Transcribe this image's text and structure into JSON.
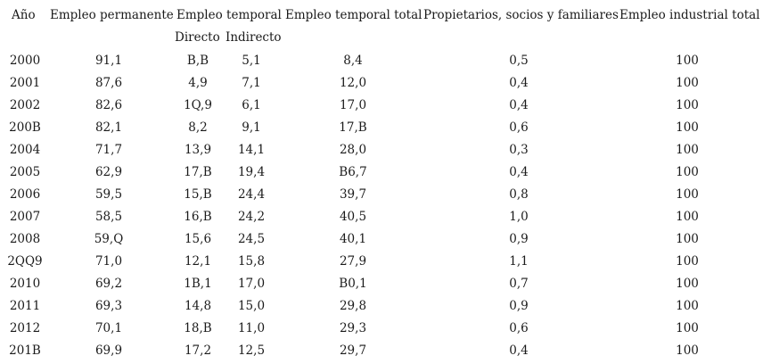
{
  "headers": {
    "year": "Año",
    "permanent": "Empleo permanente",
    "temporary": "Empleo temporal",
    "temporary_total": "Empleo temporal total",
    "owners": "Propietarios, socios y familiares",
    "industrial_total": "Empleo industrial total"
  },
  "subheaders": {
    "direct": "Directo",
    "indirect": "Indirecto"
  },
  "rows": [
    {
      "year": "2000",
      "perm": "91,1",
      "dir": "B,B",
      "ind": "5,1",
      "tot": "8,4",
      "prop": "0,5",
      "indtot": "100"
    },
    {
      "year": "2001",
      "perm": "87,6",
      "dir": "4,9",
      "ind": "7,1",
      "tot": "12,0",
      "prop": "0,4",
      "indtot": "100"
    },
    {
      "year": "2002",
      "perm": "82,6",
      "dir": "1Q,9",
      "ind": "6,1",
      "tot": "17,0",
      "prop": "0,4",
      "indtot": "100"
    },
    {
      "year": "200B",
      "perm": "82,1",
      "dir": "8,2",
      "ind": "9,1",
      "tot": "17,B",
      "prop": "0,6",
      "indtot": "100"
    },
    {
      "year": "2004",
      "perm": "71,7",
      "dir": "13,9",
      "ind": "14,1",
      "tot": "28,0",
      "prop": "0,3",
      "indtot": "100"
    },
    {
      "year": "2005",
      "perm": "62,9",
      "dir": "17,B",
      "ind": "19,4",
      "tot": "B6,7",
      "prop": "0,4",
      "indtot": "100"
    },
    {
      "year": "2006",
      "perm": "59,5",
      "dir": "15,B",
      "ind": "24,4",
      "tot": "39,7",
      "prop": "0,8",
      "indtot": "100"
    },
    {
      "year": "2007",
      "perm": "58,5",
      "dir": "16,B",
      "ind": "24,2",
      "tot": "40,5",
      "prop": "1,0",
      "indtot": "100"
    },
    {
      "year": "2008",
      "perm": "59,Q",
      "dir": "15,6",
      "ind": "24,5",
      "tot": "40,1",
      "prop": "0,9",
      "indtot": "100"
    },
    {
      "year": "2QQ9",
      "perm": "71,0",
      "dir": "12,1",
      "ind": "15,8",
      "tot": "27,9",
      "prop": "1,1",
      "indtot": "100"
    },
    {
      "year": "2010",
      "perm": "69,2",
      "dir": "1B,1",
      "ind": "17,0",
      "tot": "B0,1",
      "prop": "0,7",
      "indtot": "100"
    },
    {
      "year": "2011",
      "perm": "69,3",
      "dir": "14,8",
      "ind": "15,0",
      "tot": "29,8",
      "prop": "0,9",
      "indtot": "100"
    },
    {
      "year": "2012",
      "perm": "70,1",
      "dir": "18,B",
      "ind": "11,0",
      "tot": "29,3",
      "prop": "0,6",
      "indtot": "100"
    },
    {
      "year": "201B",
      "perm": "69,9",
      "dir": "17,2",
      "ind": "12,5",
      "tot": "29,7",
      "prop": "0,4",
      "indtot": "100"
    }
  ]
}
